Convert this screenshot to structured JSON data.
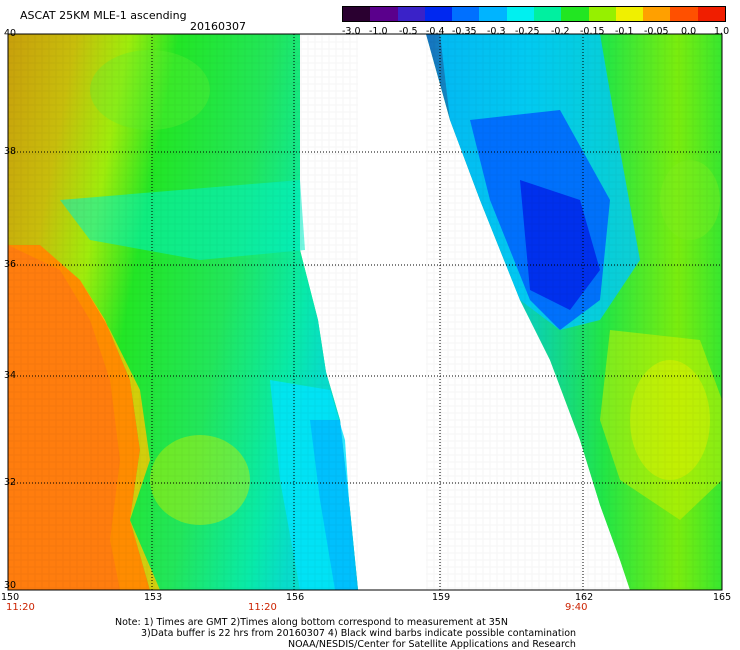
{
  "header": {
    "title": "ASCAT 25KM MLE-1 ascending",
    "date": "20160307"
  },
  "colorbar": {
    "tick_labels": [
      "-3.0",
      "-1.0",
      "-0.5",
      "-0.4",
      "-0.35",
      "-0.3",
      "-0.25",
      "-0.2",
      "-0.15",
      "-0.1",
      "-0.05",
      "0.0",
      "1.0"
    ],
    "colors": [
      "#2a0030",
      "#5a008c",
      "#3a22c8",
      "#0028f0",
      "#0070ff",
      "#00b4ff",
      "#00f0f0",
      "#00f0a0",
      "#22e622",
      "#96f000",
      "#f0f000",
      "#ffa000",
      "#ff5000",
      "#f01e00"
    ]
  },
  "map": {
    "lat_labels": [
      "40",
      "38",
      "36",
      "34",
      "32",
      "30"
    ],
    "lon_labels": [
      "150",
      "153",
      "156",
      "159",
      "162",
      "165"
    ],
    "pass_times": [
      "11:20",
      "11:20",
      "9:40"
    ]
  },
  "notes": {
    "line1": "Note: 1) Times are GMT 2)Times along bottom correspond to measurement at 35N",
    "line2": "3)Data buffer is 22 hrs from 20160307 4) Black wind barbs indicate possible contamination",
    "line3": "NOAA/NESDIS/Center for Satellite Applications and Research"
  }
}
